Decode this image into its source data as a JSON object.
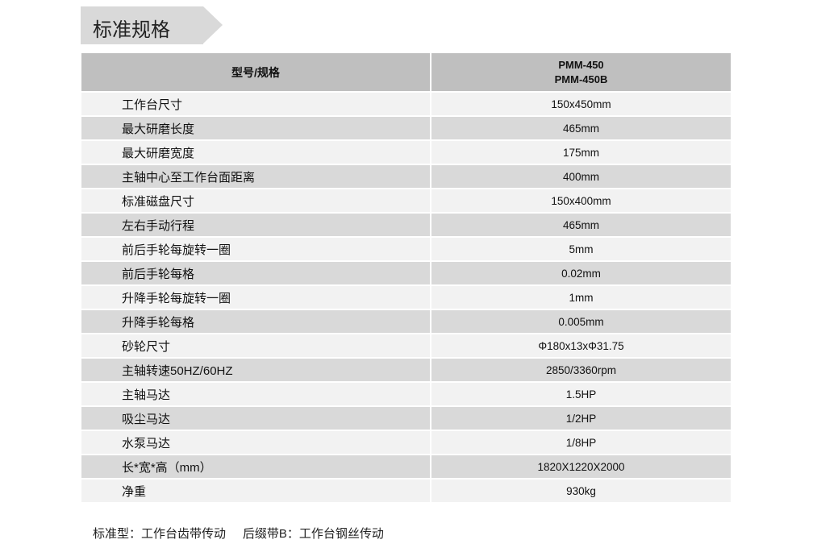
{
  "title": "标准规格",
  "table": {
    "header": {
      "label": "型号/规格",
      "models": [
        "PMM-450",
        "PMM-450B"
      ]
    },
    "rows": [
      {
        "name": "工作台尺寸",
        "value": "150x450mm"
      },
      {
        "name": "最大研磨长度",
        "value": "465mm"
      },
      {
        "name": "最大研磨宽度",
        "value": "175mm"
      },
      {
        "name": "主轴中心至工作台面距离",
        "value": "400mm"
      },
      {
        "name": "标准磁盘尺寸",
        "value": "150x400mm"
      },
      {
        "name": "左右手动行程",
        "value": "465mm"
      },
      {
        "name": "前后手轮每旋转一圈",
        "value": "5mm"
      },
      {
        "name": "前后手轮每格",
        "value": "0.02mm"
      },
      {
        "name": "升降手轮每旋转一圈",
        "value": "1mm"
      },
      {
        "name": "升降手轮每格",
        "value": "0.005mm"
      },
      {
        "name": "砂轮尺寸",
        "value": "Φ180x13xΦ31.75"
      },
      {
        "name": "主轴转速50HZ/60HZ",
        "value": "2850/3360rpm"
      },
      {
        "name": "主轴马达",
        "value": "1.5HP"
      },
      {
        "name": "吸尘马达",
        "value": "1/2HP"
      },
      {
        "name": "水泵马达",
        "value": "1/8HP"
      },
      {
        "name": "长*宽*高（mm）",
        "value": "1820X1220X2000"
      },
      {
        "name": "净重",
        "value": "930kg"
      }
    ]
  },
  "note": "标准型：工作台齿带传动     后缀带B：工作台钢丝传动",
  "colors": {
    "header": "#bfbfbf",
    "row_light": "#f2f2f2",
    "row_dark": "#d9d9d9",
    "banner": "#d9d9d9"
  }
}
